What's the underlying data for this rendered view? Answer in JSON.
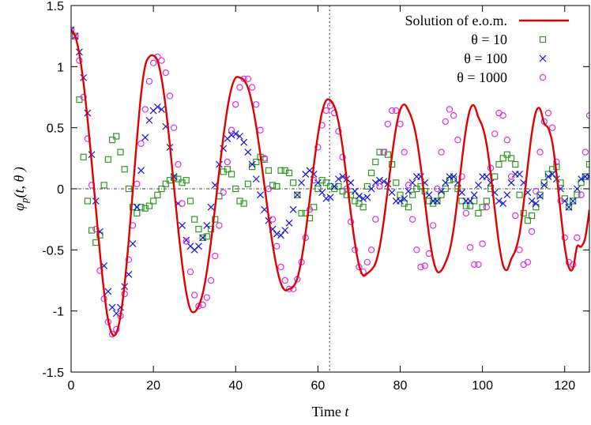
{
  "chart_data": {
    "type": "line",
    "title": "",
    "xlabel": "Time t",
    "ylabel": "φp(t, θ )",
    "xlim": [
      0,
      126
    ],
    "ylim": [
      -1.5,
      1.5
    ],
    "x_ticks": [
      "0",
      "20",
      "40",
      "60",
      "80",
      "100",
      "120"
    ],
    "y_ticks": [
      "-1.5",
      "-1",
      "-0.5",
      "0",
      "0.5",
      "1",
      "1.5"
    ],
    "x_tick_values": [
      0,
      20,
      40,
      60,
      80,
      100,
      120
    ],
    "y_tick_values": [
      -1.5,
      -1,
      -0.5,
      0,
      0.5,
      1,
      1.5
    ],
    "zero_line": true,
    "vertical_line_x": 62.83,
    "legend_position": "top-right",
    "series": [
      {
        "name": "Solution of e.o.m.",
        "style": "line",
        "color": "#e00000",
        "x": [
          0,
          1,
          2,
          3,
          4,
          5,
          6,
          7,
          8,
          9,
          10,
          11,
          12,
          13,
          14,
          15,
          16,
          17,
          18,
          19,
          20,
          21,
          22,
          23,
          24,
          25,
          26,
          27,
          28,
          29,
          30,
          31,
          32,
          33,
          34,
          35,
          36,
          37,
          38,
          39,
          40,
          41,
          42,
          43,
          44,
          45,
          46,
          47,
          48,
          49,
          50,
          51,
          52,
          53,
          54,
          55,
          56,
          57,
          58,
          59,
          60,
          61,
          62,
          63,
          64,
          65,
          66,
          67,
          68,
          69,
          70,
          71,
          72,
          73,
          74,
          75,
          76,
          77,
          78,
          79,
          80,
          81,
          82,
          83,
          84,
          85,
          86,
          87,
          88,
          89,
          90,
          91,
          92,
          93,
          94,
          95,
          96,
          97,
          98,
          99,
          100,
          101,
          102,
          103,
          104,
          105,
          106,
          107,
          108,
          109,
          110,
          111,
          112,
          113,
          114,
          115,
          116,
          117,
          118,
          119,
          120,
          121,
          122,
          123,
          124,
          125,
          126
        ],
        "y": [
          1.3,
          1.249,
          1.103,
          0.871,
          0.568,
          0.217,
          -0.156,
          -0.52,
          -0.838,
          -1.074,
          -1.19,
          -1.18,
          -1.042,
          -0.782,
          -0.426,
          -0.014,
          0.402,
          0.77,
          1.005,
          1.081,
          1.09,
          1.048,
          0.902,
          0.666,
          0.362,
          0.021,
          -0.317,
          -0.617,
          -0.85,
          -0.988,
          -1.008,
          -0.96,
          -0.856,
          -0.676,
          -0.434,
          -0.151,
          0.143,
          0.421,
          0.657,
          0.826,
          0.909,
          0.91,
          0.89,
          0.826,
          0.697,
          0.51,
          0.279,
          0.026,
          -0.226,
          -0.457,
          -0.645,
          -0.774,
          -0.83,
          -0.82,
          -0.801,
          -0.732,
          -0.582,
          -0.359,
          -0.088,
          0.191,
          0.44,
          0.627,
          0.723,
          0.725,
          0.673,
          0.545,
          0.339,
          0.078,
          -0.198,
          -0.446,
          -0.627,
          -0.71,
          -0.692,
          -0.663,
          -0.61,
          -0.477,
          -0.264,
          0.0,
          0.27,
          0.5,
          0.647,
          0.69,
          0.642,
          0.557,
          0.41,
          0.181,
          -0.1,
          -0.372,
          -0.575,
          -0.677,
          -0.669,
          -0.604,
          -0.509,
          -0.327,
          -0.063,
          0.233,
          0.49,
          0.651,
          0.68,
          0.586,
          0.51,
          0.366,
          0.123,
          -0.171,
          -0.445,
          -0.625,
          -0.663,
          -0.574,
          -0.505,
          -0.373,
          -0.122,
          0.181,
          0.456,
          0.63,
          0.655,
          0.536,
          0.496,
          0.375,
          0.125,
          -0.19,
          -0.475,
          -0.644,
          -0.651,
          -0.474,
          -0.473,
          -0.398,
          -0.172
        ]
      },
      {
        "name": "θ = 10",
        "style": "square",
        "color": "#2e9a22",
        "x": [
          0,
          1,
          2,
          3,
          4,
          5,
          6,
          7,
          8,
          9,
          10,
          11,
          12,
          13,
          14,
          15,
          16,
          17,
          18,
          19,
          20,
          21,
          22,
          23,
          24,
          25,
          26,
          27,
          28,
          29,
          30,
          31,
          32,
          33,
          34,
          35,
          36,
          37,
          38,
          39,
          40,
          41,
          42,
          43,
          44,
          45,
          46,
          47,
          48,
          49,
          50,
          51,
          52,
          53,
          54,
          55,
          56,
          57,
          58,
          59,
          60,
          61,
          62,
          63,
          64,
          65,
          66,
          67,
          68,
          69,
          70,
          71,
          72,
          73,
          74,
          75,
          76,
          77,
          78,
          79,
          80,
          81,
          82,
          83,
          84,
          85,
          86,
          87,
          88,
          89,
          90,
          91,
          92,
          93,
          94,
          95,
          96,
          97,
          98,
          99,
          100,
          101,
          102,
          103,
          104,
          105,
          106,
          107,
          108,
          109,
          110,
          111,
          112,
          113,
          114,
          115,
          116,
          117,
          118,
          119,
          120,
          121,
          122,
          123,
          124,
          125,
          126
        ],
        "y": [
          1.3,
          1.25,
          0.73,
          0.26,
          -0.1,
          -0.34,
          -0.44,
          -0.38,
          0.03,
          0.24,
          0.4,
          0.43,
          0.3,
          0.16,
          0.0,
          -0.15,
          -0.2,
          -0.15,
          -0.16,
          -0.14,
          -0.1,
          -0.05,
          0.0,
          0.04,
          0.07,
          0.09,
          0.08,
          0.05,
          0.07,
          -0.1,
          -0.25,
          -0.33,
          -0.4,
          -0.39,
          -0.33,
          -0.25,
          -0.06,
          0.14,
          0.16,
          0.12,
          0.0,
          -0.1,
          -0.12,
          0.04,
          0.18,
          0.22,
          0.26,
          0.24,
          0.15,
          0.03,
          0.02,
          0.15,
          0.15,
          0.13,
          0.05,
          -0.05,
          -0.2,
          -0.2,
          -0.24,
          -0.15,
          0.0,
          0.07,
          0.05,
          0.02,
          0.0,
          0.02,
          -0.02,
          -0.05,
          -0.05,
          -0.1,
          -0.12,
          -0.15,
          0.02,
          0.13,
          0.22,
          0.3,
          0.3,
          0.28,
          0.2,
          0.05,
          -0.05,
          -0.12,
          -0.15,
          -0.05,
          0.0,
          0.02,
          -0.02,
          -0.1,
          -0.12,
          -0.1,
          -0.05,
          0.0,
          0.07,
          0.08,
          0.0,
          -0.1,
          -0.14,
          -0.14,
          -0.1,
          -0.2,
          -0.15,
          -0.1,
          0.0,
          0.1,
          0.2,
          0.25,
          0.28,
          0.25,
          0.2,
          -0.05,
          -0.2,
          -0.26,
          -0.22,
          -0.15,
          -0.05,
          0.05,
          0.12,
          0.16,
          0.18,
          0.05,
          -0.08,
          -0.15,
          -0.1,
          -0.05,
          0.05,
          0.1,
          0.2
        ]
      },
      {
        "name": "θ = 100",
        "style": "cross",
        "color": "#1414e0",
        "x": [
          0,
          1,
          2,
          3,
          4,
          5,
          6,
          7,
          8,
          9,
          10,
          11,
          12,
          13,
          14,
          15,
          16,
          17,
          18,
          19,
          20,
          21,
          22,
          23,
          24,
          25,
          26,
          27,
          28,
          29,
          30,
          31,
          32,
          33,
          34,
          35,
          36,
          37,
          38,
          39,
          40,
          41,
          42,
          43,
          44,
          45,
          46,
          47,
          48,
          49,
          50,
          51,
          52,
          53,
          54,
          55,
          56,
          57,
          58,
          59,
          60,
          61,
          62,
          63,
          64,
          65,
          66,
          67,
          68,
          69,
          70,
          71,
          72,
          73,
          74,
          75,
          76,
          77,
          78,
          79,
          80,
          81,
          82,
          83,
          84,
          85,
          86,
          87,
          88,
          89,
          90,
          91,
          92,
          93,
          94,
          95,
          96,
          97,
          98,
          99,
          100,
          101,
          102,
          103,
          104,
          105,
          106,
          107,
          108,
          109,
          110,
          111,
          112,
          113,
          114,
          115,
          116,
          117,
          118,
          119,
          120,
          121,
          122,
          123,
          124,
          125,
          126
        ],
        "y": [
          1.3,
          1.25,
          1.12,
          0.91,
          0.62,
          0.28,
          -0.1,
          -0.35,
          -0.63,
          -0.84,
          -0.97,
          -1.02,
          -0.97,
          -0.8,
          -0.7,
          -0.45,
          -0.15,
          0.15,
          0.42,
          0.56,
          0.64,
          0.67,
          0.65,
          0.51,
          0.34,
          0.1,
          -0.12,
          -0.3,
          -0.42,
          -0.47,
          -0.5,
          -0.47,
          -0.4,
          -0.3,
          -0.15,
          0.03,
          0.2,
          0.33,
          0.41,
          0.44,
          0.45,
          0.43,
          0.38,
          0.3,
          0.2,
          0.08,
          -0.05,
          -0.17,
          -0.26,
          -0.33,
          -0.37,
          -0.38,
          -0.34,
          -0.28,
          -0.17,
          -0.05,
          0.05,
          0.12,
          0.15,
          0.12,
          0.05,
          -0.03,
          -0.08,
          -0.07,
          0.02,
          0.08,
          0.1,
          0.08,
          0.05,
          -0.02,
          -0.06,
          -0.08,
          -0.07,
          0.0,
          0.05,
          0.07,
          0.06,
          0.04,
          -0.03,
          -0.1,
          -0.1,
          -0.08,
          -0.02,
          0.05,
          0.1,
          0.1,
          0.05,
          -0.05,
          -0.1,
          -0.1,
          -0.02,
          0.05,
          0.1,
          0.1,
          0.05,
          -0.03,
          -0.1,
          -0.1,
          -0.05,
          0.03,
          0.1,
          0.1,
          0.05,
          -0.03,
          -0.1,
          -0.12,
          -0.05,
          0.05,
          0.12,
          0.12,
          0.05,
          -0.03,
          -0.1,
          -0.12,
          -0.06,
          0.03,
          0.1,
          0.12,
          0.08,
          0.0,
          -0.1,
          -0.15,
          -0.1,
          0.0,
          0.08,
          0.1,
          0.1
        ]
      },
      {
        "name": "θ = 1000",
        "style": "circle",
        "color": "#dd2ee6",
        "x": [
          0,
          1,
          2,
          3,
          4,
          5,
          6,
          7,
          8,
          9,
          10,
          11,
          12,
          13,
          14,
          15,
          16,
          17,
          18,
          19,
          20,
          21,
          22,
          23,
          24,
          25,
          26,
          27,
          28,
          29,
          30,
          31,
          32,
          33,
          34,
          35,
          36,
          37,
          38,
          39,
          40,
          41,
          42,
          43,
          44,
          45,
          46,
          47,
          48,
          49,
          50,
          51,
          52,
          53,
          54,
          55,
          56,
          57,
          58,
          59,
          60,
          61,
          62,
          63,
          64,
          65,
          66,
          67,
          68,
          69,
          70,
          71,
          72,
          73,
          74,
          75,
          76,
          77,
          78,
          79,
          80,
          81,
          82,
          83,
          84,
          85,
          86,
          87,
          88,
          89,
          90,
          91,
          92,
          93,
          94,
          95,
          96,
          97,
          98,
          99,
          100,
          101,
          102,
          103,
          104,
          105,
          106,
          107,
          108,
          109,
          110,
          111,
          112,
          113,
          114,
          115,
          116,
          117,
          118,
          119,
          120,
          121,
          122,
          123,
          124,
          125,
          126
        ],
        "y": [
          1.3,
          1.25,
          1.05,
          0.75,
          0.41,
          0.03,
          -0.33,
          -0.67,
          -0.9,
          -1.09,
          -1.19,
          -1.15,
          -1.04,
          -0.86,
          -0.58,
          -0.3,
          0.04,
          0.37,
          0.65,
          0.88,
          1.03,
          1.08,
          1.05,
          0.95,
          0.76,
          0.5,
          0.2,
          -0.12,
          -0.43,
          -0.68,
          -0.87,
          -0.96,
          -0.95,
          -0.89,
          -0.75,
          -0.55,
          -0.3,
          -0.03,
          0.22,
          0.48,
          0.69,
          0.83,
          0.9,
          0.9,
          0.83,
          0.69,
          0.48,
          0.25,
          0.0,
          -0.25,
          -0.47,
          -0.64,
          -0.75,
          -0.82,
          -0.82,
          -0.74,
          -0.6,
          -0.4,
          -0.17,
          0.07,
          0.34,
          0.52,
          0.64,
          0.68,
          0.62,
          0.47,
          0.26,
          0.0,
          -0.27,
          -0.5,
          -0.64,
          -0.68,
          -0.6,
          -0.5,
          -0.25,
          0.02,
          0.3,
          0.53,
          0.64,
          0.64,
          0.53,
          0.3,
          0.03,
          -0.25,
          -0.5,
          -0.64,
          -0.63,
          -0.53,
          -0.3,
          0.0,
          0.3,
          0.55,
          0.65,
          0.6,
          0.4,
          0.1,
          -0.2,
          -0.48,
          -0.62,
          -0.62,
          -0.45,
          -0.15,
          0.17,
          0.45,
          0.62,
          0.6,
          0.4,
          0.1,
          -0.22,
          -0.5,
          -0.62,
          -0.6,
          -0.35,
          -0.02,
          0.3,
          0.55,
          0.62,
          0.5,
          0.22,
          -0.1,
          -0.4,
          -0.6,
          -0.62,
          -0.4,
          -0.05,
          0.3,
          0.6
        ]
      }
    ]
  }
}
